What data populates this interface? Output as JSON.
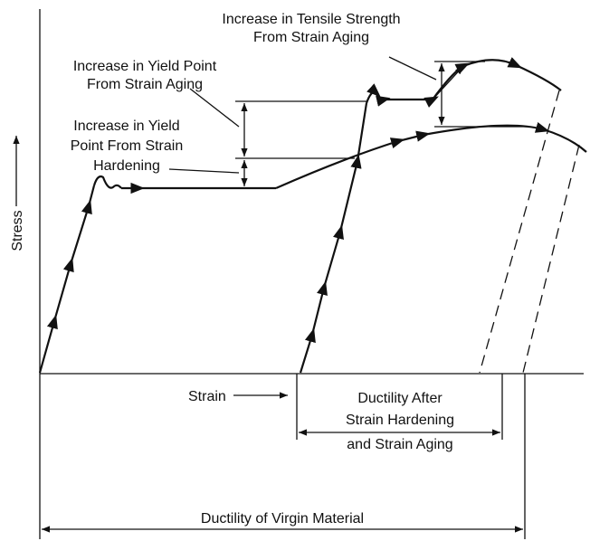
{
  "labels": {
    "tensile": [
      "Increase in Tensile Strength",
      "From Strain Aging"
    ],
    "yield_aging": [
      "Increase in Yield Point",
      "From Strain Aging"
    ],
    "yield_hardening": [
      "Increase in Yield",
      "Point From Strain",
      "Hardening"
    ],
    "stress": "Stress",
    "strain": "Strain",
    "ductility_after": [
      "Ductility After",
      "Strain Hardening",
      "and Strain Aging"
    ],
    "ductility_virgin": "Ductility of Virgin Material"
  }
}
